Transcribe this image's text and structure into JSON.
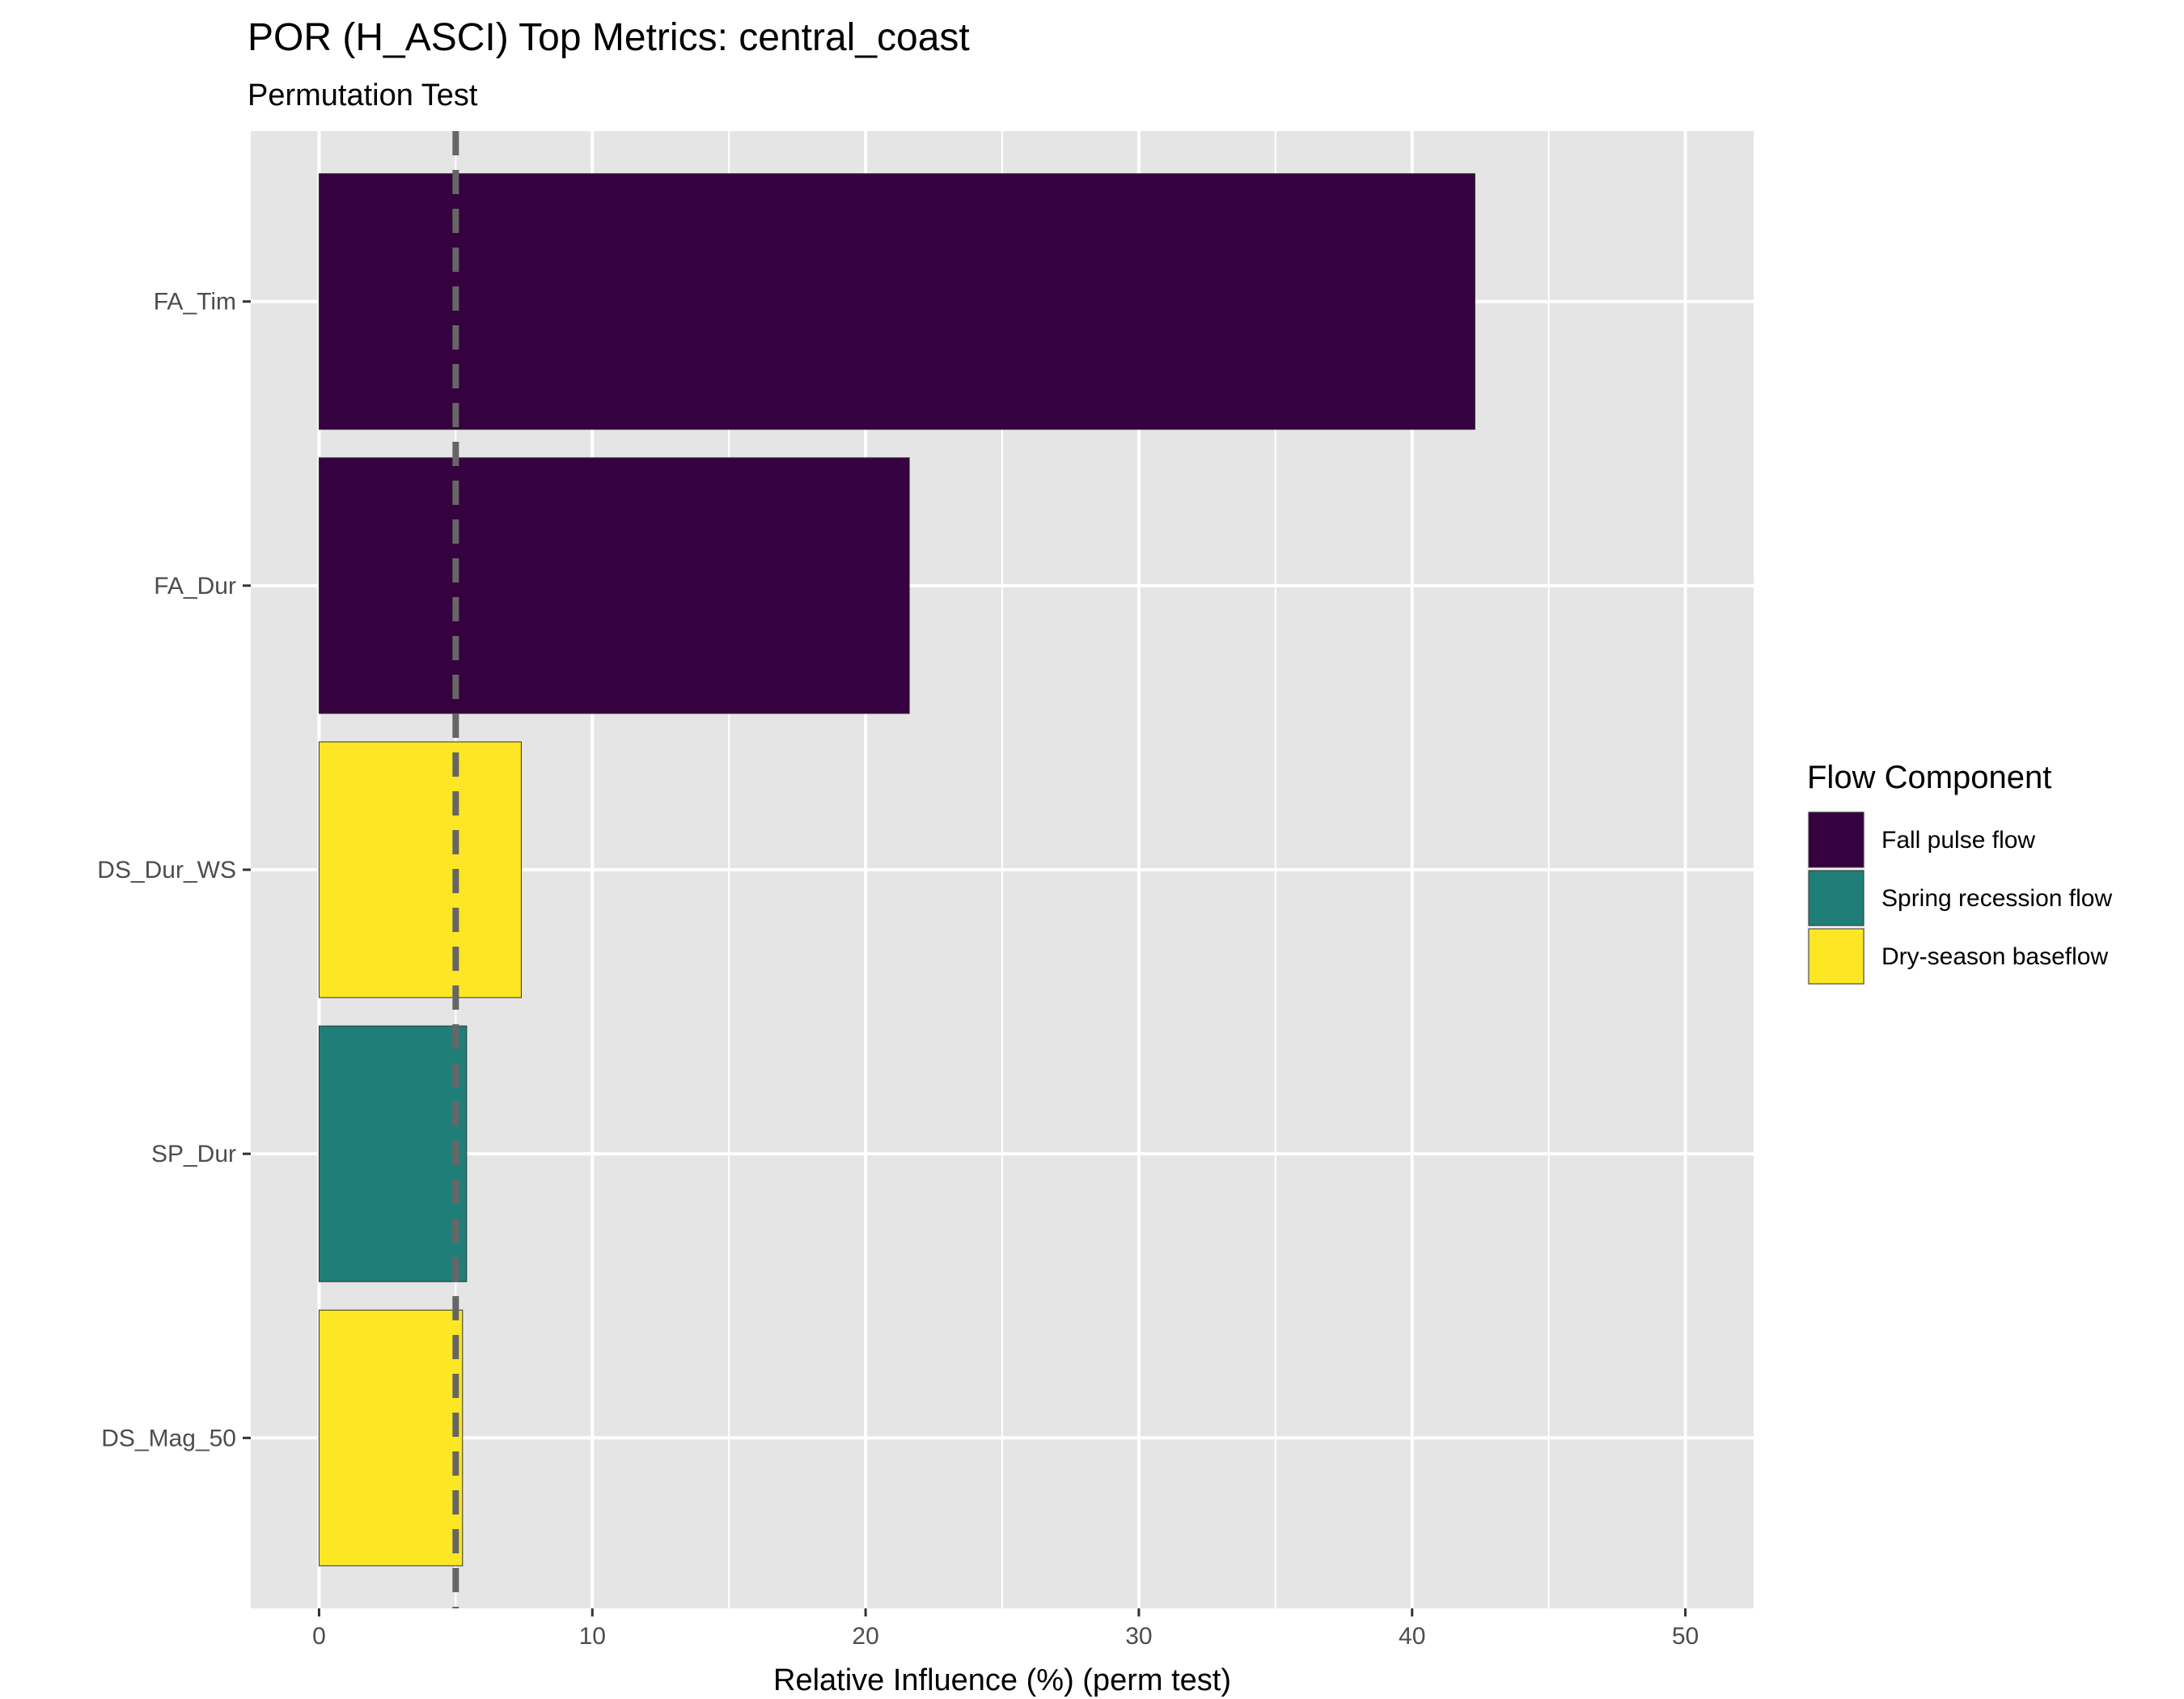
{
  "chart_data": {
    "type": "bar",
    "orientation": "horizontal",
    "title": "POR (H_ASCI) Top Metrics: central_coast",
    "subtitle": "Permutation Test",
    "xlabel": "Relative Influence (%) (perm test)",
    "ylabel": "",
    "xlim": [
      -2.5,
      52.5
    ],
    "xticks": [
      0,
      10,
      20,
      30,
      40,
      50
    ],
    "xtick_labels": [
      "0",
      "10",
      "20",
      "30",
      "40",
      "50"
    ],
    "reference_line": {
      "x": 5,
      "style": "dashed",
      "color": "#666666"
    },
    "grid": true,
    "legend_position": "right",
    "legend_title": "Flow Component",
    "legend": [
      {
        "label": "Fall pulse flow",
        "color": "#36013f"
      },
      {
        "label": "Spring recession flow",
        "color": "#1f7f78"
      },
      {
        "label": "Dry-season baseflow",
        "color": "#fde725"
      }
    ],
    "categories": [
      "FA_Tim",
      "FA_Dur",
      "DS_Dur_WS",
      "SP_Dur",
      "DS_Mag_50"
    ],
    "values": [
      42.3,
      21.6,
      7.4,
      5.4,
      5.25
    ],
    "bar_colors": [
      "#36013f",
      "#36013f",
      "#fde725",
      "#1f7f78",
      "#fde725"
    ]
  }
}
